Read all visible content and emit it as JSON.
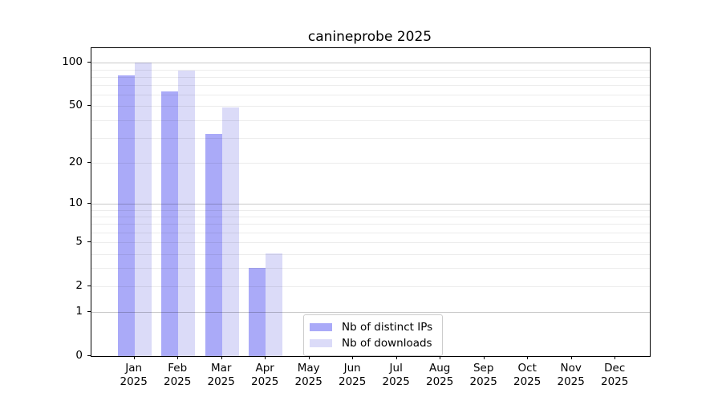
{
  "title": "canineprobe 2025",
  "chart_data": {
    "type": "bar",
    "title": "canineprobe 2025",
    "y_axis": {
      "scale": "log1p",
      "tick_labels": [
        0,
        1,
        2,
        5,
        10,
        20,
        50,
        100
      ],
      "ylim": [
        0,
        126
      ],
      "gridlines_decade": [
        1,
        10,
        100
      ],
      "gridlines_minor": [
        2,
        3,
        4,
        5,
        6,
        7,
        8,
        9,
        20,
        30,
        40,
        50,
        60,
        70,
        80,
        90
      ]
    },
    "x_axis": {
      "categories": [
        {
          "month": "Jan",
          "year": "2025"
        },
        {
          "month": "Feb",
          "year": "2025"
        },
        {
          "month": "Mar",
          "year": "2025"
        },
        {
          "month": "Apr",
          "year": "2025"
        },
        {
          "month": "May",
          "year": "2025"
        },
        {
          "month": "Jun",
          "year": "2025"
        },
        {
          "month": "Jul",
          "year": "2025"
        },
        {
          "month": "Aug",
          "year": "2025"
        },
        {
          "month": "Sep",
          "year": "2025"
        },
        {
          "month": "Oct",
          "year": "2025"
        },
        {
          "month": "Nov",
          "year": "2025"
        },
        {
          "month": "Dec",
          "year": "2025"
        }
      ]
    },
    "series": [
      {
        "name": "Nb of distinct IPs",
        "color": "#aaaaf8",
        "values": [
          82,
          63,
          32,
          3,
          0,
          0,
          0,
          0,
          0,
          0,
          0,
          0
        ]
      },
      {
        "name": "Nb of downloads",
        "color": "#dbdbf8",
        "values": [
          100,
          88,
          49,
          4,
          0,
          0,
          0,
          0,
          0,
          0,
          0,
          0
        ]
      }
    ],
    "legend": {
      "position": "inside-bottom-center",
      "entries": [
        "Nb of distinct IPs",
        "Nb of downloads"
      ]
    },
    "grid": true
  }
}
